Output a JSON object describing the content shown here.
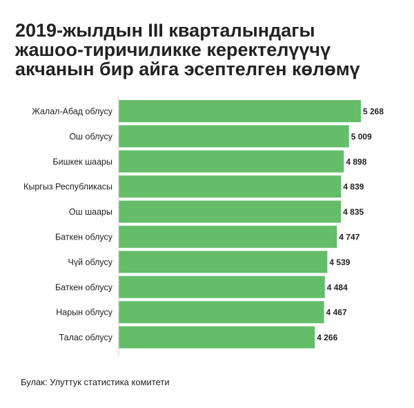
{
  "title_lines": [
    "2019-жылдын III кварталындагы",
    "жашоо-тиричиликке керектелүүчү",
    "акчанын бир айга эсептелген көлөмү"
  ],
  "source": "Булак: Улуттук статистика комитети",
  "colors": {
    "bar": "#65bd6a",
    "axis": "#cccccc",
    "text": "#222222"
  },
  "chart_data": {
    "type": "bar",
    "orientation": "horizontal",
    "categories": [
      "Жалал-Абад облусу",
      "Ош облусу",
      "Бишкек шаары",
      "Кыргыз Республикасы",
      "Ош шаары",
      "Баткен облусу",
      "Чүй облусу",
      "Баткен облусу",
      "Нарын облусу",
      "Талас облусу"
    ],
    "values": [
      5268,
      5009,
      4898,
      4839,
      4835,
      4747,
      4539,
      4484,
      4467,
      4266
    ],
    "value_labels": [
      "5 268",
      "5 009",
      "4 898",
      "4 839",
      "4 835",
      "4 747",
      "4 539",
      "4 484",
      "4 467",
      "4 266"
    ],
    "xlim": [
      0,
      5268
    ],
    "grid": false,
    "legend": "none"
  }
}
